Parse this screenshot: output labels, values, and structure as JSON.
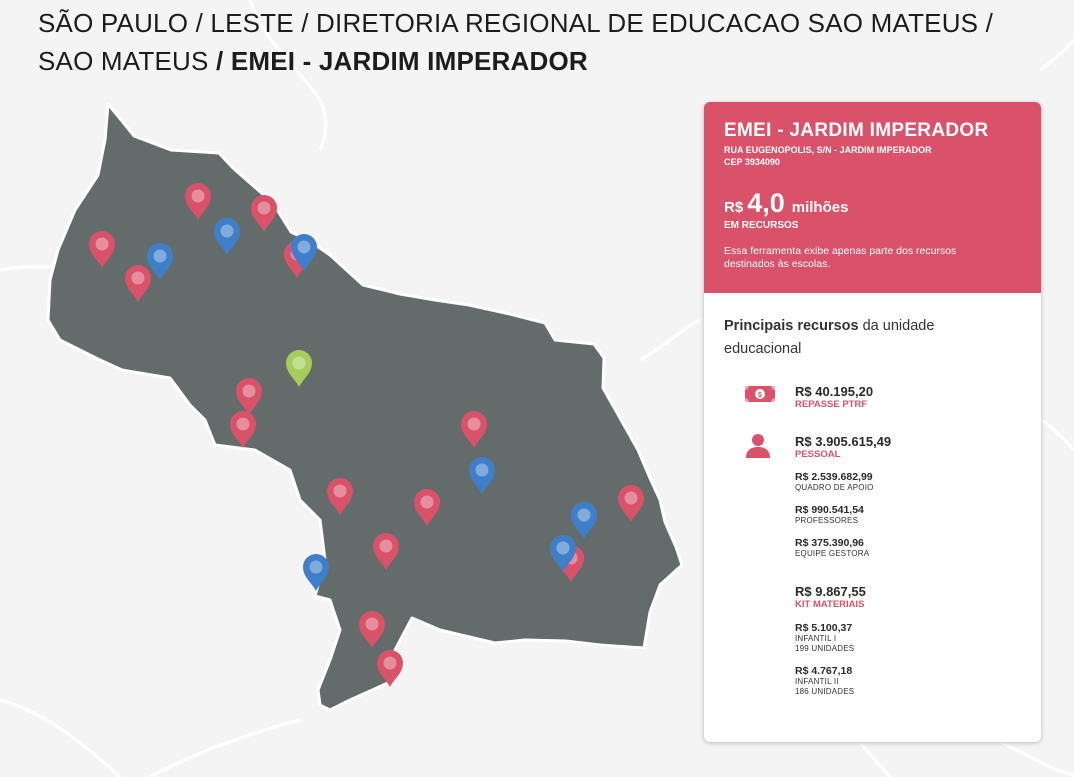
{
  "breadcrumb": {
    "path": "SÃO PAULO / LESTE / DIRETORIA REGIONAL DE EDUCACAO SAO MATEUS / SAO MATEUS",
    "current": " / EMEI - JARDIM IMPERADOR"
  },
  "map": {
    "region_color": "#646b6b",
    "background_color": "#f4f4f5",
    "marker_colors": {
      "red": "#d9526a",
      "blue": "#3f7fca",
      "green": "#a6cc5c"
    },
    "pin_icon": "map-pin-icon"
  },
  "panel": {
    "school_name": "EMEI - JARDIM IMPERADOR",
    "address": "RUA EUGENOPOLIS, S/N - JARDIM IMPERADOR",
    "cep": "CEP 3934090",
    "total_currency": "R$",
    "total_value": "4,0",
    "total_unit": "milhões",
    "total_label": "EM RECURSOS",
    "disclaimer": "Essa ferramenta exibe apenas parte dos recursos destinados às escolas.",
    "section_title_bold": "Principais recursos",
    "section_title_rest": " da unidade educacional",
    "accent_color": "#d9526a",
    "resources": [
      {
        "icon": "money-bill-icon",
        "value": "R$ 40.195,20",
        "label": "REPASSE PTRF"
      },
      {
        "icon": "person-icon",
        "value": "R$ 3.905.615,49",
        "label": "PESSOAL",
        "items": [
          {
            "value": "R$ 2.539.682,99",
            "label": "QUADRO DE APOIO"
          },
          {
            "value": "R$ 990.541,54",
            "label": "PROFESSORES"
          },
          {
            "value": "R$ 375.390,96",
            "label": "EQUIPE GESTORA"
          }
        ]
      },
      {
        "value": "R$ 9.867,55",
        "label": "KIT MATERIAIS",
        "items": [
          {
            "value": "R$ 5.100,37",
            "label": "INFANTIL I",
            "units": "199 UNIDADES"
          },
          {
            "value": "R$ 4.767,18",
            "label": "INFANTIL II",
            "units": "186 UNIDADES"
          }
        ]
      }
    ]
  }
}
